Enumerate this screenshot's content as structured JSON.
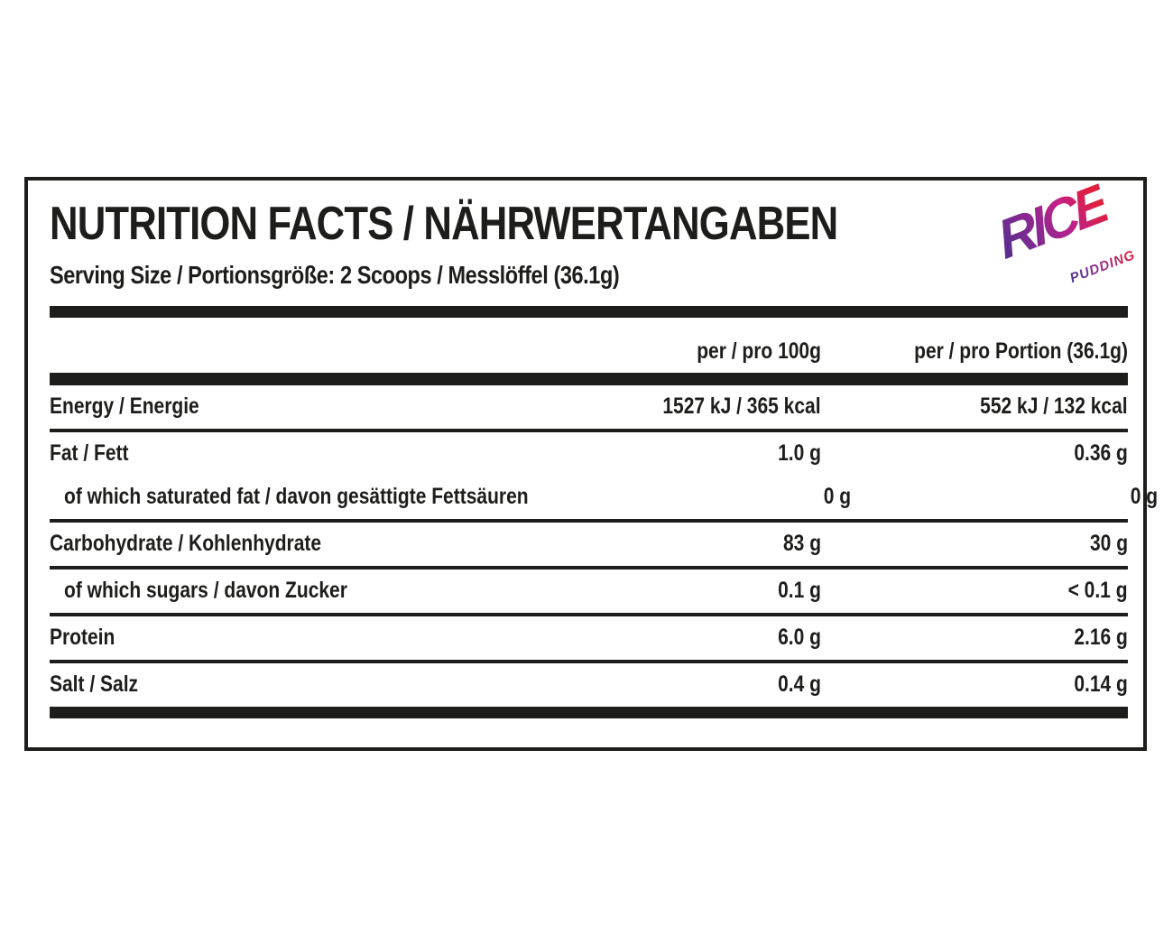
{
  "label": {
    "title": "NUTRITION FACTS / NÄHRWERTANGABEN",
    "serving_line": "Serving Size / Portionsgröße: 2 Scoops / Messlöffel (36.1g)",
    "logo": {
      "brand": "RICE",
      "sub": "PUDDING"
    }
  },
  "table": {
    "columns": [
      {
        "label": "per / pro 100g"
      },
      {
        "label": "per / pro Portion (36.1g)"
      }
    ],
    "rows": [
      {
        "label": "Energy / Energie",
        "per_100g": "1527 kJ / 365 kcal",
        "per_portion": "552 kJ / 132 kcal"
      },
      {
        "label": "Fat / Fett",
        "per_100g": "1.0 g",
        "per_portion": "0.36 g"
      },
      {
        "label": "of which saturated fat / davon gesättigte Fettsäuren",
        "per_100g": "0 g",
        "per_portion": "0 g"
      },
      {
        "label": "Carbohydrate / Kohlenhydrate",
        "per_100g": "83 g",
        "per_portion": "30 g"
      },
      {
        "label": "of which sugars / davon Zucker",
        "per_100g": "0.1 g",
        "per_portion": "< 0.1 g"
      },
      {
        "label": "Protein",
        "per_100g": "6.0 g",
        "per_portion": "2.16 g"
      },
      {
        "label": "Salt / Salz",
        "per_100g": "0.4 g",
        "per_portion": "0.14 g"
      }
    ]
  },
  "colors": {
    "ink": "#1d1d1b",
    "background": "#ffffff",
    "logo_gradient_start": "#5b2d8e",
    "logo_gradient_mid": "#c02189",
    "logo_gradient_end": "#e01f3d"
  }
}
